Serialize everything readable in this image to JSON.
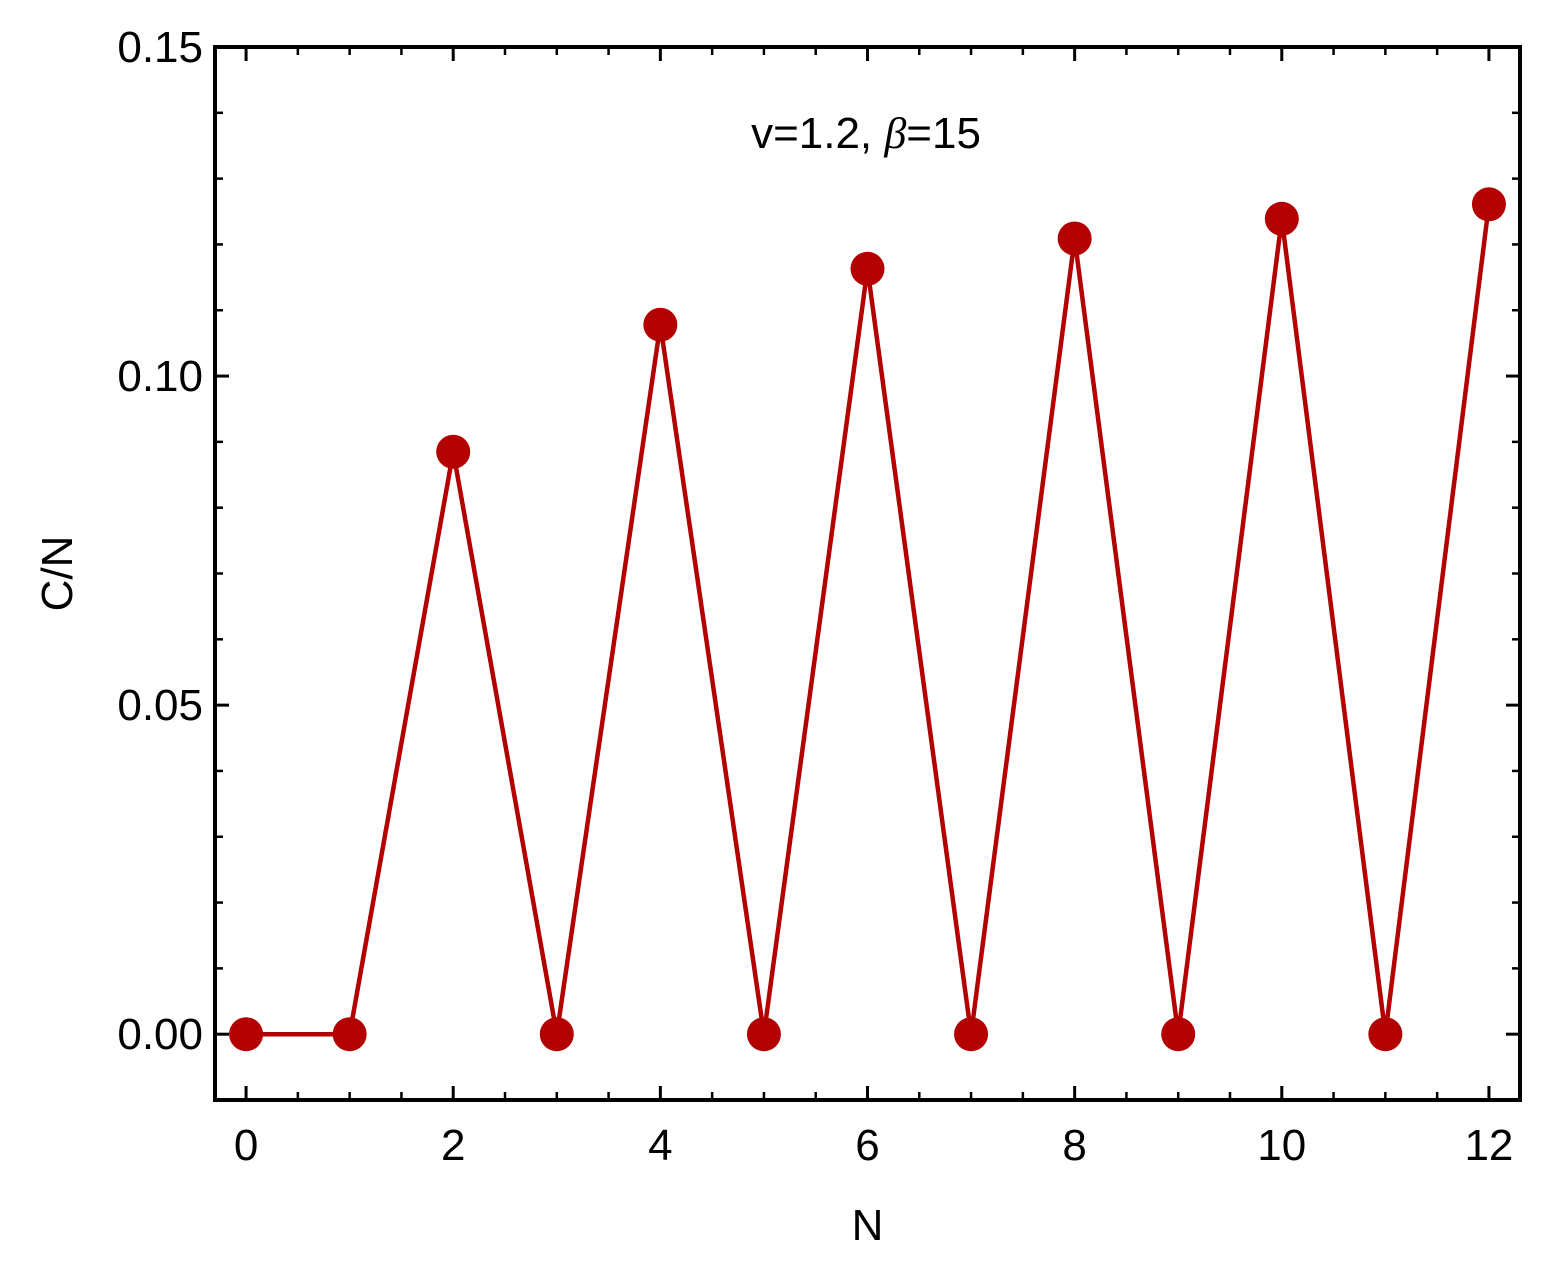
{
  "chart_data": {
    "type": "line",
    "xlabel": "N",
    "ylabel": "C/N",
    "annotation": {
      "prefix": "v=1.2, ",
      "symbol": "β",
      "suffix": "=15"
    },
    "xlim": [
      -0.3,
      12.3
    ],
    "ylim": [
      -0.01,
      0.15
    ],
    "xticks": [
      0,
      2,
      4,
      6,
      8,
      10,
      12
    ],
    "xtick_labels": [
      "0",
      "2",
      "4",
      "6",
      "8",
      "10",
      "12"
    ],
    "yticks": [
      0.0,
      0.05,
      0.1,
      0.15
    ],
    "ytick_labels": [
      "0.00",
      "0.05",
      "0.10",
      "0.15"
    ],
    "grid": false,
    "color": "#b30000",
    "series": [
      {
        "x": [
          0,
          1,
          2,
          3,
          4,
          5,
          6,
          7,
          8,
          9,
          10,
          11,
          12
        ],
        "y": [
          0.0,
          0.0,
          0.0885,
          0.0,
          0.1078,
          0.0,
          0.1163,
          0.0,
          0.1209,
          0.0,
          0.1239,
          0.0,
          0.1261
        ]
      }
    ]
  }
}
